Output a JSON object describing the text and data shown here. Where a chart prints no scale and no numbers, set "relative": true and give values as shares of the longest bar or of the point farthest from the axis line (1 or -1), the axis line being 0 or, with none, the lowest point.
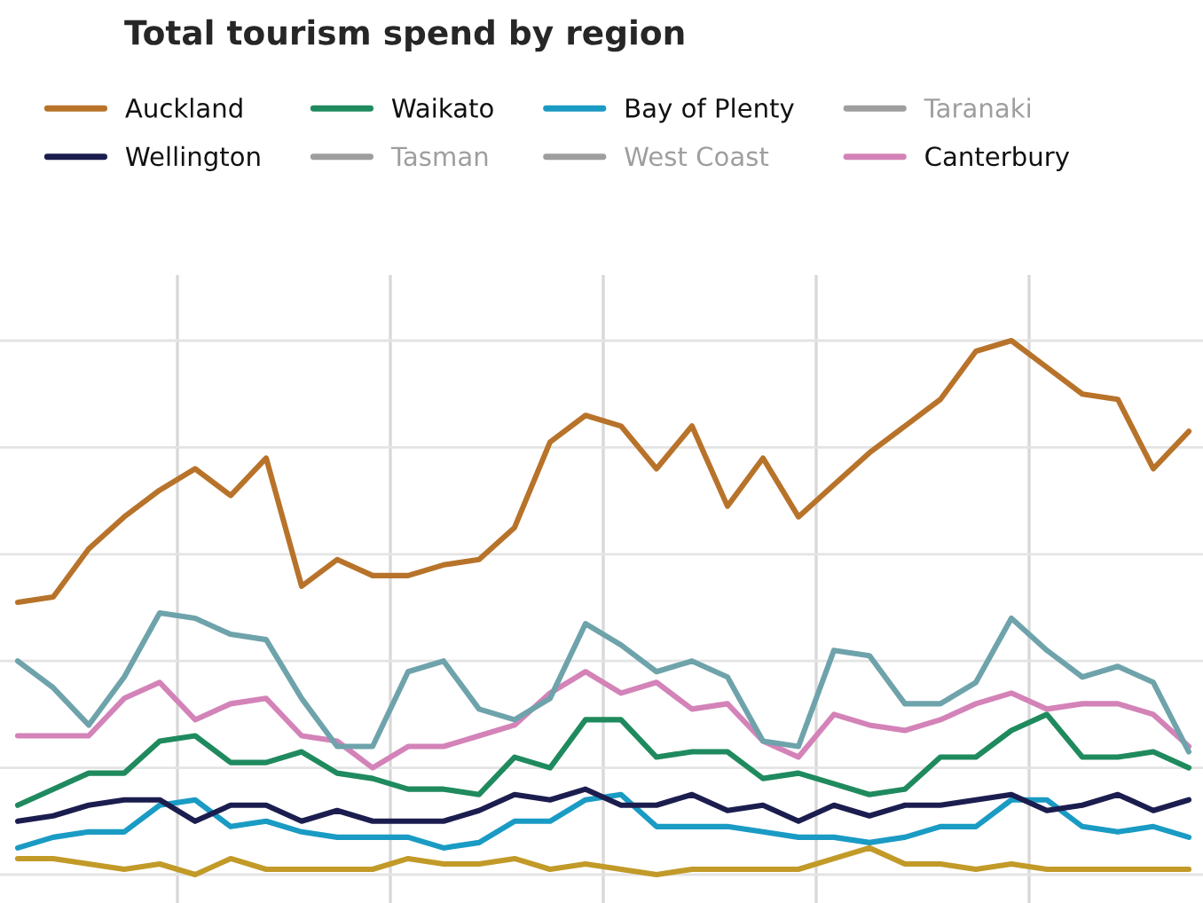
{
  "chart_data": {
    "type": "line",
    "title": "Total tourism spend by region",
    "relative": true,
    "grid": true,
    "legend": "top",
    "line_style": "solid",
    "marker": "none",
    "categories": [
      null,
      null,
      null,
      null,
      null,
      null,
      null,
      null,
      null,
      null,
      null,
      null,
      null,
      null,
      null,
      null,
      null,
      null,
      null,
      null,
      null,
      null,
      null,
      null,
      null,
      null,
      null,
      null,
      null,
      null,
      null,
      null,
      null,
      null
    ],
    "series": [
      {
        "name": "Auckland",
        "color": "#b8732a",
        "values": [
          0.51,
          0.52,
          0.61,
          0.67,
          0.72,
          0.76,
          0.71,
          0.78,
          0.54,
          0.59,
          0.56,
          0.56,
          0.58,
          0.59,
          0.65,
          0.81,
          0.86,
          0.84,
          0.76,
          0.84,
          0.69,
          0.78,
          0.67,
          0.73,
          0.79,
          0.84,
          0.89,
          0.98,
          1,
          0.95,
          0.9,
          0.89,
          0.76,
          0.83
        ]
      },
      {
        "name": "Waikato",
        "color": "#1f8a5e",
        "values": [
          0.13,
          0.16,
          0.19,
          0.19,
          0.25,
          0.26,
          0.21,
          0.21,
          0.23,
          0.19,
          0.18,
          0.16,
          0.16,
          0.15,
          0.22,
          0.2,
          0.29,
          0.29,
          0.22,
          0.23,
          0.23,
          0.18,
          0.19,
          0.17,
          0.15,
          0.16,
          0.22,
          0.22,
          0.27,
          0.3,
          0.22,
          0.22,
          0.23,
          0.2
        ]
      },
      {
        "name": "Bay of Plenty",
        "color": "#1a9bc4",
        "values": [
          0.05,
          0.07,
          0.08,
          0.08,
          0.13,
          0.14,
          0.09,
          0.1,
          0.08,
          0.07,
          0.07,
          0.07,
          0.05,
          0.06,
          0.1,
          0.1,
          0.14,
          0.15,
          0.09,
          0.09,
          0.09,
          0.08,
          0.07,
          0.07,
          0.06,
          0.07,
          0.09,
          0.09,
          0.14,
          0.14,
          0.09,
          0.08,
          0.09,
          0.07
        ]
      },
      {
        "name": "Taranaki",
        "color": "#9e9e9e",
        "values": [
          null,
          null,
          null,
          null,
          null,
          null,
          null,
          null,
          null,
          null,
          null,
          null,
          null,
          null,
          null,
          null,
          null,
          null,
          null,
          null,
          null,
          null,
          null,
          null,
          null,
          null,
          null,
          null,
          null,
          null,
          null,
          null,
          null,
          null
        ]
      },
      {
        "name": "Wellington",
        "color": "#1c1d4f",
        "values": [
          0.1,
          0.11,
          0.13,
          0.14,
          0.14,
          0.1,
          0.13,
          0.13,
          0.1,
          0.12,
          0.1,
          0.1,
          0.1,
          0.12,
          0.15,
          0.14,
          0.16,
          0.13,
          0.13,
          0.15,
          0.12,
          0.13,
          0.1,
          0.13,
          0.11,
          0.13,
          0.13,
          0.14,
          0.15,
          0.12,
          0.13,
          0.15,
          0.12,
          0.14
        ]
      },
      {
        "name": "Tasman",
        "color": "#9e9e9e",
        "values": [
          null,
          null,
          null,
          null,
          null,
          null,
          null,
          null,
          null,
          null,
          null,
          null,
          null,
          null,
          null,
          null,
          null,
          null,
          null,
          null,
          null,
          null,
          null,
          null,
          null,
          null,
          null,
          null,
          null,
          null,
          null,
          null,
          null,
          null
        ]
      },
      {
        "name": "West Coast",
        "color": "#9e9e9e",
        "values": [
          null,
          null,
          null,
          null,
          null,
          null,
          null,
          null,
          null,
          null,
          null,
          null,
          null,
          null,
          null,
          null,
          null,
          null,
          null,
          null,
          null,
          null,
          null,
          null,
          null,
          null,
          null,
          null,
          null,
          null,
          null,
          null,
          null,
          null
        ]
      },
      {
        "name": "Canterbury",
        "color": "#d383b8",
        "values": [
          0.26,
          0.26,
          0.26,
          0.33,
          0.36,
          0.29,
          0.32,
          0.33,
          0.26,
          0.25,
          0.2,
          0.24,
          0.24,
          0.26,
          0.28,
          0.34,
          0.38,
          0.34,
          0.36,
          0.31,
          0.32,
          0.25,
          0.22,
          0.3,
          0.28,
          0.27,
          0.29,
          0.32,
          0.34,
          0.31,
          0.32,
          0.32,
          0.3,
          0.24
        ]
      },
      {
        "color": "#6fa3ab",
        "values": [
          0.4,
          0.35,
          0.28,
          0.37,
          0.49,
          0.48,
          0.45,
          0.44,
          0.33,
          0.24,
          0.24,
          0.38,
          0.4,
          0.31,
          0.29,
          0.33,
          0.47,
          0.43,
          0.38,
          0.4,
          0.37,
          0.25,
          0.24,
          0.42,
          0.41,
          0.32,
          0.32,
          0.36,
          0.48,
          0.42,
          0.37,
          0.39,
          0.36,
          0.23
        ]
      },
      {
        "color": "#c29a28",
        "values": [
          0.03,
          0.03,
          0.02,
          0.01,
          0.02,
          0,
          0.03,
          0.01,
          0.01,
          0.01,
          0.01,
          0.03,
          0.02,
          0.02,
          0.03,
          0.01,
          0.02,
          0.01,
          0,
          0.01,
          0.01,
          0.01,
          0.01,
          0.03,
          0.05,
          0.02,
          0.02,
          0.01,
          0.02,
          0.01,
          0.01,
          0.01,
          0.01,
          0.01
        ]
      }
    ]
  }
}
